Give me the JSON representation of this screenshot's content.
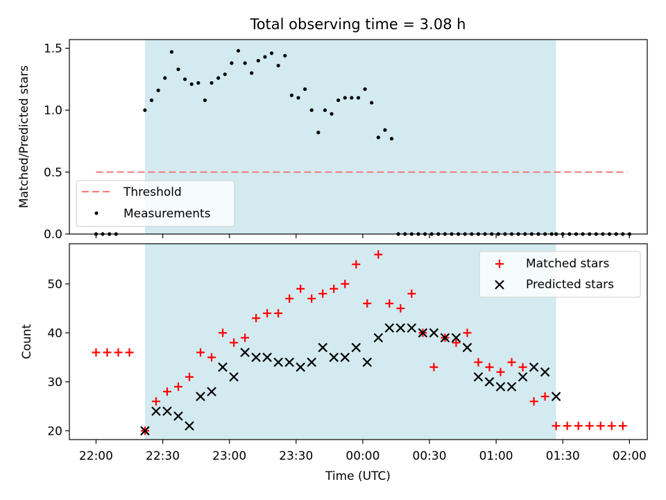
{
  "chart_data": [
    {
      "type": "scatter",
      "title": "Total observing time = 3.08 h",
      "ylabel": "Matched/Predicted stars",
      "xlim": [
        "21:48",
        "02:08"
      ],
      "ylim": [
        0,
        1.57
      ],
      "y_ticks": [
        "0.0",
        "0.5",
        "1.0",
        "1.5"
      ],
      "y_tick_values": [
        0,
        0.5,
        1.0,
        1.5
      ],
      "grid": false,
      "legend_position": "lower-left",
      "observing_window": [
        "22:22",
        "01:27"
      ],
      "window_color": "#d3ebf0",
      "threshold": {
        "name": "Threshold",
        "value": 0.5,
        "x": [
          "22:00",
          "01:59"
        ],
        "color": "#f08080",
        "style": "dashed"
      },
      "series": [
        {
          "name": "Measurements",
          "marker": "dot",
          "color": "#000000",
          "x": [
            "22:00",
            "22:03",
            "22:06",
            "22:09",
            "22:22",
            "22:25",
            "22:28",
            "22:31",
            "22:34",
            "22:37",
            "22:40",
            "22:43",
            "22:46",
            "22:49",
            "22:52",
            "22:55",
            "22:58",
            "23:01",
            "23:04",
            "23:07",
            "23:10",
            "23:13",
            "23:16",
            "23:19",
            "23:22",
            "23:25",
            "23:28",
            "23:31",
            "23:34",
            "23:37",
            "23:40",
            "23:43",
            "23:46",
            "23:49",
            "23:52",
            "23:55",
            "23:58",
            "00:01",
            "00:04",
            "00:07",
            "00:10",
            "00:13",
            "00:16",
            "00:19",
            "00:22",
            "00:25",
            "00:28",
            "00:31",
            "00:34",
            "00:37",
            "00:40",
            "00:43",
            "00:46",
            "00:49",
            "00:52",
            "00:55",
            "00:58",
            "01:01",
            "01:04",
            "01:07",
            "01:10",
            "01:13",
            "01:16",
            "01:19",
            "01:22",
            "01:25",
            "01:27",
            "01:30",
            "01:33",
            "01:36",
            "01:39",
            "01:42",
            "01:45",
            "01:48",
            "01:51",
            "01:54",
            "01:57",
            "02:00"
          ],
          "y": [
            0,
            0,
            0,
            0,
            1.0,
            1.08,
            1.16,
            1.26,
            1.47,
            1.33,
            1.25,
            1.21,
            1.22,
            1.08,
            1.22,
            1.26,
            1.29,
            1.38,
            1.48,
            1.38,
            1.3,
            1.4,
            1.43,
            1.46,
            1.36,
            1.44,
            1.12,
            1.1,
            1.17,
            1.0,
            0.82,
            1.0,
            0.97,
            1.08,
            1.1,
            1.1,
            1.1,
            1.17,
            1.06,
            0.78,
            0.84,
            0.77,
            0,
            0,
            0,
            0,
            0,
            0,
            0,
            0,
            0,
            0,
            0,
            0,
            0,
            0,
            0,
            0,
            0,
            0,
            0,
            0,
            0,
            0,
            0,
            0,
            0,
            0,
            0,
            0,
            0,
            0,
            0,
            0,
            0,
            0,
            0,
            0
          ]
        }
      ]
    },
    {
      "type": "scatter",
      "xlabel": "Time (UTC)",
      "ylabel": "Count",
      "xlim": [
        "21:48",
        "02:08"
      ],
      "ylim": [
        18.2,
        58.2
      ],
      "x_ticks": [
        "22:00",
        "22:30",
        "23:00",
        "23:30",
        "00:00",
        "00:30",
        "01:00",
        "01:30",
        "02:00"
      ],
      "y_ticks": [
        "20",
        "30",
        "40",
        "50"
      ],
      "y_tick_values": [
        20,
        30,
        40,
        50
      ],
      "grid": false,
      "legend_position": "top-right",
      "observing_window": [
        "22:22",
        "01:27"
      ],
      "window_color": "#d3ebf0",
      "series": [
        {
          "name": "Matched stars",
          "marker": "plus",
          "color": "#ff0000",
          "x": [
            "22:00",
            "22:05",
            "22:10",
            "22:15",
            "22:22",
            "22:27",
            "22:32",
            "22:37",
            "22:42",
            "22:47",
            "22:52",
            "22:57",
            "23:02",
            "23:07",
            "23:12",
            "23:17",
            "23:22",
            "23:27",
            "23:32",
            "23:37",
            "23:42",
            "23:47",
            "23:52",
            "23:57",
            "00:02",
            "00:07",
            "00:12",
            "00:17",
            "00:22",
            "00:27",
            "00:32",
            "00:37",
            "00:42",
            "00:47",
            "00:52",
            "00:57",
            "01:02",
            "01:07",
            "01:12",
            "01:17",
            "01:22",
            "01:27",
            "01:32",
            "01:37",
            "01:42",
            "01:47",
            "01:52",
            "01:57"
          ],
          "y": [
            36,
            36,
            36,
            36,
            20,
            26,
            28,
            29,
            31,
            36,
            35,
            40,
            38,
            39,
            43,
            44,
            44,
            47,
            49,
            47,
            48,
            49,
            50,
            54,
            46,
            56,
            46,
            45,
            48,
            40,
            33,
            39,
            38,
            40,
            34,
            33,
            32,
            34,
            33,
            26,
            27,
            21,
            21,
            21,
            21,
            21,
            21,
            21
          ]
        },
        {
          "name": "Predicted stars",
          "marker": "x",
          "color": "#000000",
          "x": [
            "22:22",
            "22:27",
            "22:32",
            "22:37",
            "22:42",
            "22:47",
            "22:52",
            "22:57",
            "23:02",
            "23:07",
            "23:12",
            "23:17",
            "23:22",
            "23:27",
            "23:32",
            "23:37",
            "23:42",
            "23:47",
            "23:52",
            "23:57",
            "00:02",
            "00:07",
            "00:12",
            "00:17",
            "00:22",
            "00:27",
            "00:32",
            "00:37",
            "00:42",
            "00:47",
            "00:52",
            "00:57",
            "01:02",
            "01:07",
            "01:12",
            "01:17",
            "01:22",
            "01:27"
          ],
          "y": [
            20,
            24,
            24,
            23,
            21,
            27,
            28,
            33,
            31,
            36,
            35,
            35,
            34,
            34,
            33,
            34,
            37,
            35,
            35,
            37,
            34,
            39,
            41,
            41,
            41,
            40,
            40,
            39,
            39,
            37,
            31,
            30,
            29,
            29,
            31,
            33,
            32,
            27
          ]
        }
      ]
    }
  ]
}
